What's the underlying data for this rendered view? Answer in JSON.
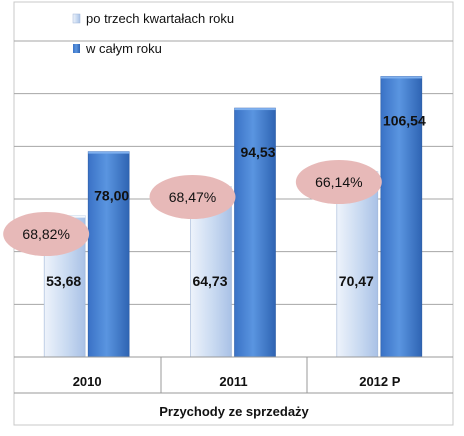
{
  "chart_data": {
    "type": "bar",
    "title": "",
    "categories": [
      "2010",
      "2011",
      "2012 P"
    ],
    "series": [
      {
        "name": "po trzech kwartałach roku",
        "values": [
          53.68,
          64.73,
          70.47
        ],
        "color": "#c9daf1"
      },
      {
        "name": "w całym roku",
        "values": [
          78.0,
          94.53,
          106.54
        ],
        "color": "#4a86d4"
      }
    ],
    "value_labels": [
      [
        "53,68",
        "64,73",
        "70,47"
      ],
      [
        "78,00",
        "94,53",
        "106,54"
      ]
    ],
    "ratio_labels": [
      "68,82%",
      "68,47%",
      "66,14%"
    ],
    "ratio_color": "#e7b9b8",
    "xlabel": "Przychody ze sprzedaży",
    "ylabel": "",
    "ylim": [
      0,
      120
    ],
    "y_gridlines": [
      20,
      40,
      60,
      80,
      100,
      120
    ],
    "grid": true,
    "legend_position": "top-left"
  }
}
